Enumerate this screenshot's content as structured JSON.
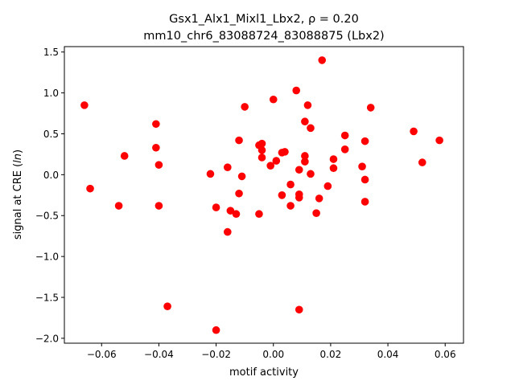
{
  "chart_data": {
    "type": "scatter",
    "title": "Gsx1_Alx1_Mixl1_Lbx2, ρ = 0.20",
    "subtitle": "mm10_chr6_83088724_83088875 (Lbx2)",
    "xlabel": "motif activity",
    "ylabel_prefix": "signal at CRE (",
    "ylabel_italic": "ln",
    "ylabel_suffix": ")",
    "xlim": [
      -0.073,
      0.0664
    ],
    "ylim": [
      -2.06,
      1.566
    ],
    "xticks": [
      -0.06,
      -0.04,
      -0.02,
      0.0,
      0.02,
      0.04,
      0.06
    ],
    "xtick_labels": [
      "−0.06",
      "−0.04",
      "−0.02",
      "0.00",
      "0.02",
      "0.04",
      "0.06"
    ],
    "yticks": [
      -2.0,
      -1.5,
      -1.0,
      -0.5,
      0.0,
      0.5,
      1.0,
      1.5
    ],
    "ytick_labels": [
      "−2.0",
      "−1.5",
      "−1.0",
      "−0.5",
      "0.0",
      "0.5",
      "1.0",
      "1.5"
    ],
    "grid": false,
    "marker_color": "#ff0000",
    "points": [
      [
        -0.066,
        0.85
      ],
      [
        -0.064,
        -0.17
      ],
      [
        -0.054,
        -0.38
      ],
      [
        -0.052,
        0.23
      ],
      [
        -0.041,
        0.62
      ],
      [
        -0.041,
        0.33
      ],
      [
        -0.04,
        0.12
      ],
      [
        -0.04,
        -0.38
      ],
      [
        -0.037,
        -1.61
      ],
      [
        -0.022,
        0.01
      ],
      [
        -0.02,
        -0.4
      ],
      [
        -0.02,
        -1.9
      ],
      [
        -0.016,
        0.09
      ],
      [
        -0.016,
        -0.7
      ],
      [
        -0.015,
        -0.44
      ],
      [
        -0.013,
        -0.48
      ],
      [
        -0.012,
        0.42
      ],
      [
        -0.012,
        -0.23
      ],
      [
        -0.011,
        -0.02
      ],
      [
        -0.01,
        0.83
      ],
      [
        -0.005,
        -0.48
      ],
      [
        -0.005,
        0.36
      ],
      [
        -0.004,
        0.38
      ],
      [
        -0.004,
        0.3
      ],
      [
        -0.004,
        0.21
      ],
      [
        0.0,
        0.92
      ],
      [
        -0.001,
        0.11
      ],
      [
        0.001,
        0.17
      ],
      [
        0.003,
        0.27
      ],
      [
        0.004,
        0.28
      ],
      [
        0.003,
        -0.25
      ],
      [
        0.006,
        -0.12
      ],
      [
        0.006,
        -0.38
      ],
      [
        0.008,
        1.03
      ],
      [
        0.009,
        -0.28
      ],
      [
        0.009,
        -0.24
      ],
      [
        0.009,
        0.06
      ],
      [
        0.009,
        -1.65
      ],
      [
        0.011,
        0.65
      ],
      [
        0.011,
        0.16
      ],
      [
        0.011,
        0.23
      ],
      [
        0.012,
        0.85
      ],
      [
        0.013,
        0.57
      ],
      [
        0.013,
        0.01
      ],
      [
        0.015,
        -0.47
      ],
      [
        0.016,
        -0.29
      ],
      [
        0.017,
        1.4
      ],
      [
        0.019,
        -0.14
      ],
      [
        0.021,
        0.19
      ],
      [
        0.021,
        0.08
      ],
      [
        0.025,
        0.48
      ],
      [
        0.025,
        0.31
      ],
      [
        0.031,
        0.1
      ],
      [
        0.032,
        0.41
      ],
      [
        0.032,
        -0.06
      ],
      [
        0.032,
        -0.33
      ],
      [
        0.034,
        0.82
      ],
      [
        0.049,
        0.53
      ],
      [
        0.052,
        0.15
      ],
      [
        0.058,
        0.42
      ]
    ]
  }
}
